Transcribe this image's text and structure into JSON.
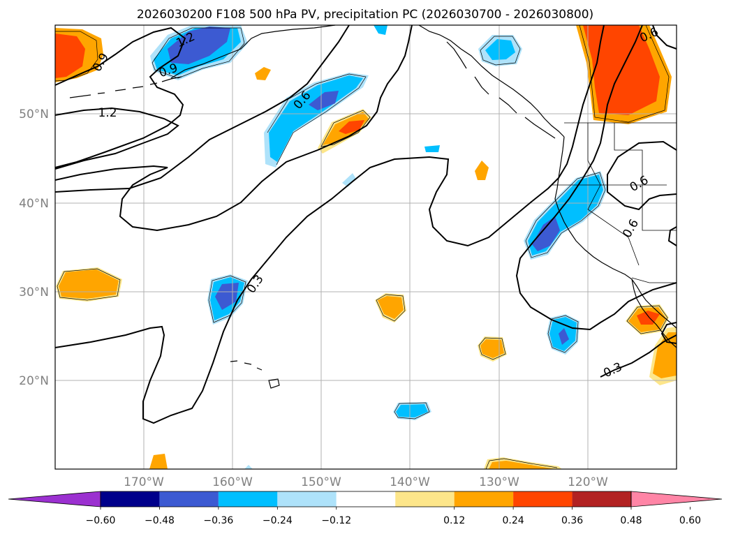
{
  "chart_data": {
    "type": "map",
    "title": "2026030200 F108 500 hPa PV, precipitation PC (2026030700 - 2026030800)",
    "lon_ticks": [
      "170°W",
      "160°W",
      "150°W",
      "140°W",
      "130°W",
      "120°W"
    ],
    "lat_ticks": [
      "50°N",
      "40°N",
      "30°N",
      "20°N"
    ],
    "lon_range": [
      -180,
      -110
    ],
    "lat_range": [
      10,
      60
    ],
    "grid": true,
    "colorbar": {
      "orientation": "horizontal",
      "extend": "both",
      "ticks": [
        "−0.60",
        "−0.48",
        "−0.36",
        "−0.24",
        "−0.12",
        "0.12",
        "0.24",
        "0.36",
        "0.48",
        "0.60"
      ],
      "colors": [
        "#9b30d0",
        "#00008b",
        "#3c5ad2",
        "#00bfff",
        "#aee2fa",
        "#ffffff",
        "#fde68a",
        "#ffa500",
        "#ff4500",
        "#b22222",
        "#ff85a6"
      ]
    },
    "pv_contour_labels": [
      "1.2",
      "0.9",
      "1.2",
      "0.9",
      "0.6",
      "0.3",
      "0.6",
      "0.6",
      "0.3",
      "0.6"
    ],
    "pv_contour_levels": [
      0.3,
      0.6,
      0.9,
      1.2
    ],
    "precip_anomaly_regions": [
      {
        "lon": -176,
        "lat": 55.5,
        "value": 0.36
      },
      {
        "lon": -164,
        "lat": 58,
        "value": -0.36
      },
      {
        "lon": -150,
        "lat": 51.5,
        "value": -0.36
      },
      {
        "lon": -147,
        "lat": 48,
        "value": 0.36
      },
      {
        "lon": -117,
        "lat": 55,
        "value": 0.36
      },
      {
        "lon": -124,
        "lat": 38,
        "value": -0.36
      },
      {
        "lon": -160,
        "lat": 29.5,
        "value": -0.36
      },
      {
        "lon": -176,
        "lat": 30.5,
        "value": 0.24
      },
      {
        "lon": -142,
        "lat": 28.5,
        "value": 0.24
      },
      {
        "lon": -124,
        "lat": 25,
        "value": -0.36
      },
      {
        "lon": -115,
        "lat": 27,
        "value": 0.36
      },
      {
        "lon": -113,
        "lat": 22,
        "value": 0.24
      },
      {
        "lon": -130,
        "lat": 23.5,
        "value": 0.24
      },
      {
        "lon": -140,
        "lat": 16.5,
        "value": -0.24
      },
      {
        "lon": -129,
        "lat": 10.5,
        "value": 0.24
      },
      {
        "lon": -170,
        "lat": 10.5,
        "value": 0.24
      }
    ]
  }
}
